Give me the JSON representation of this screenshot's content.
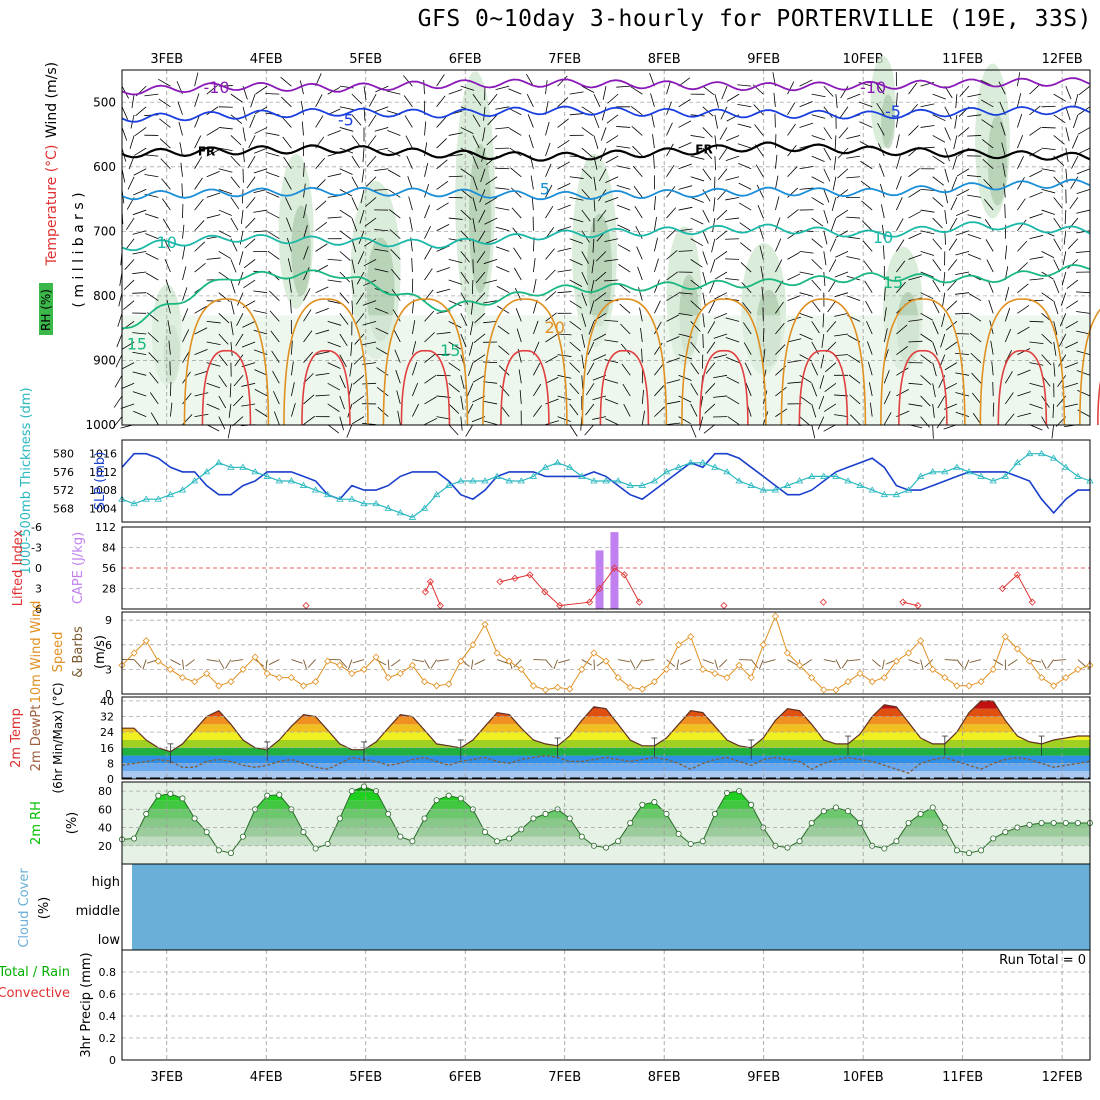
{
  "title": "GFS 0~10day 3-hourly for PORTERVILLE (19E, 33S)",
  "date_labels": [
    "3FEB",
    "4FEB",
    "5FEB",
    "6FEB",
    "7FEB",
    "8FEB",
    "9FEB",
    "10FEB",
    "11FEB",
    "12FEB"
  ],
  "run_total_label": "Run Total = 0",
  "colors": {
    "wind_barb": "#000000",
    "temp_minus10": "#8a1ab8",
    "temp_minus5": "#1a3fe0",
    "temp_FR": "#000000",
    "temp_5": "#1a8fd8",
    "temp_10": "#1ab8a8",
    "temp_15": "#1ab880",
    "temp_20": "#e09020",
    "temp_25": "#e04040",
    "rh_shade": "#cde6cd",
    "slp": "#1a3fcc",
    "thickness": "#2ab8c0",
    "cape": "#c080f0",
    "lifted_index": "#e03030",
    "wind_speed": "#e09020",
    "wind_barbs_10m": "#7a5a30",
    "rh2m": "#00c000",
    "cloud": "#6aafd8"
  },
  "chart_data": [
    {
      "type": "heatmap",
      "panel": "upper-air",
      "ylabel_parts": [
        "Wind (m/s)",
        "Temperature (°C)",
        "RH (%)",
        "( m i l l i b a r s )"
      ],
      "y_ticks": [
        "500",
        "600",
        "700",
        "800",
        "900",
        "1000"
      ],
      "ylim": [
        1000,
        450
      ],
      "contour_labels": [
        {
          "text": "-10",
          "level": -10
        },
        {
          "text": "-10",
          "level": -10
        },
        {
          "text": "-5",
          "level": -5
        },
        {
          "text": "-5",
          "level": -5
        },
        {
          "text": "FR",
          "level": 0
        },
        {
          "text": "FR",
          "level": 0
        },
        {
          "text": "5",
          "level": 5
        },
        {
          "text": "10",
          "level": 10
        },
        {
          "text": "10",
          "level": 10
        },
        {
          "text": "15",
          "level": 15
        },
        {
          "text": "15",
          "level": 15
        },
        {
          "text": "15",
          "level": 15
        },
        {
          "text": "20",
          "level": 20
        }
      ],
      "temperature_isotherms": [
        {
          "level": -10,
          "pressure": [
            483,
            475,
            478,
            472,
            470,
            473,
            476,
            474,
            470,
            468
          ]
        },
        {
          "level": -5,
          "pressure": [
            525,
            520,
            515,
            518,
            512,
            516,
            518,
            520,
            514,
            512
          ]
        },
        {
          "level": 0,
          "pressure": [
            580,
            575,
            572,
            580,
            585,
            578,
            568,
            575,
            580,
            585
          ]
        },
        {
          "level": 5,
          "pressure": [
            645,
            640,
            638,
            640,
            645,
            642,
            638,
            640,
            630,
            625
          ]
        },
        {
          "level": 10,
          "pressure": [
            725,
            710,
            715,
            720,
            705,
            700,
            695,
            705,
            690,
            700
          ]
        },
        {
          "level": 15,
          "pressure": [
            850,
            770,
            765,
            820,
            790,
            785,
            780,
            770,
            775,
            755
          ]
        }
      ]
    },
    {
      "type": "line",
      "panel": "slp-thickness",
      "ylabel": "SLP (mb)",
      "ylabel2": "1000-500mb Thickness (dm)",
      "y_ticks": [
        "1016",
        "1012",
        "1008",
        "1004"
      ],
      "y2_ticks": [
        "580",
        "576",
        "572",
        "568"
      ],
      "ylim": [
        1001,
        1019
      ],
      "y2lim": [
        565,
        583
      ],
      "series": [
        {
          "name": "SLP",
          "values": [
            1013,
            1016,
            1016,
            1015,
            1013,
            1012,
            1012,
            1009,
            1007,
            1007,
            1009,
            1010,
            1012,
            1012,
            1012,
            1011,
            1010,
            1007,
            1006,
            1009,
            1008,
            1008,
            1009,
            1011,
            1012,
            1012,
            1012,
            1010,
            1007,
            1006,
            1008,
            1011,
            1012,
            1012,
            1012,
            1011,
            1011,
            1011,
            1011,
            1012,
            1011,
            1009,
            1007,
            1006,
            1008,
            1010,
            1012,
            1014,
            1013,
            1016,
            1016,
            1015,
            1013,
            1011,
            1009,
            1007,
            1007,
            1008,
            1010,
            1012,
            1013,
            1014,
            1015,
            1013,
            1009,
            1008,
            1008,
            1009,
            1010,
            1011,
            1012,
            1012,
            1012,
            1012,
            1011,
            1010,
            1006,
            1003,
            1006,
            1008,
            1008
          ]
        },
        {
          "name": "Thickness",
          "values": [
            570,
            569,
            570,
            570,
            571,
            572,
            574,
            576,
            578,
            577,
            577,
            576,
            575,
            574,
            574,
            573,
            572,
            571,
            570,
            570,
            569,
            569,
            568,
            567,
            566,
            568,
            571,
            573,
            574,
            574,
            574,
            575,
            574,
            574,
            575,
            577,
            578,
            577,
            575,
            574,
            574,
            574,
            573,
            573,
            574,
            576,
            577,
            578,
            578,
            577,
            576,
            574,
            573,
            572,
            572,
            573,
            574,
            575,
            575,
            575,
            574,
            573,
            572,
            571,
            571,
            572,
            575,
            576,
            576,
            577,
            576,
            575,
            574,
            575,
            578,
            580,
            580,
            579,
            577,
            575,
            574
          ]
        }
      ]
    },
    {
      "type": "bar",
      "panel": "cape-li",
      "ylabel": "CAPE (J/kg)",
      "ylabel2": "Lifted Index",
      "y_ticks": [
        "112",
        "84",
        "56",
        "28"
      ],
      "y2_ticks": [
        "-6",
        "-3",
        "0",
        "3",
        "6"
      ],
      "ylim": [
        0,
        112
      ],
      "y2lim": [
        6,
        -6
      ],
      "cape_bars": [
        {
          "day": 7.35,
          "value": 80
        },
        {
          "day": 7.5,
          "value": 105
        }
      ],
      "lifted_index": [
        {
          "day": 4.4,
          "value": 5.5
        },
        {
          "day": 5.6,
          "value": 3.5
        },
        {
          "day": 5.65,
          "value": 2
        },
        {
          "day": 5.75,
          "value": 5.5
        },
        {
          "day": 6.35,
          "value": 2
        },
        {
          "day": 6.5,
          "value": 1.5
        },
        {
          "day": 6.65,
          "value": 1
        },
        {
          "day": 6.8,
          "value": 3.5
        },
        {
          "day": 6.95,
          "value": 5.5
        },
        {
          "day": 7.25,
          "value": 5
        },
        {
          "day": 7.35,
          "value": 3
        },
        {
          "day": 7.5,
          "value": 0
        },
        {
          "day": 7.6,
          "value": 1
        },
        {
          "day": 7.75,
          "value": 5
        },
        {
          "day": 8.6,
          "value": 5.5
        },
        {
          "day": 9.6,
          "value": 5
        },
        {
          "day": 10.4,
          "value": 5
        },
        {
          "day": 10.55,
          "value": 5.5
        },
        {
          "day": 11.4,
          "value": 3
        },
        {
          "day": 11.55,
          "value": 1
        },
        {
          "day": 11.7,
          "value": 5
        }
      ]
    },
    {
      "type": "line",
      "panel": "wind10m",
      "ylabel": "10m Wind Speed & Barbs (m/s)",
      "y_ticks": [
        "9",
        "6",
        "3",
        "0"
      ],
      "ylim": [
        0,
        10
      ],
      "series": [
        {
          "name": "Wind Speed",
          "values": [
            3.5,
            5,
            6.5,
            4,
            3,
            2,
            1.5,
            2.5,
            1,
            1.5,
            3,
            4.5,
            2.5,
            2,
            2,
            1,
            1.5,
            4,
            3.5,
            2.5,
            3,
            4.5,
            2,
            2.5,
            3.5,
            1.5,
            1,
            1.2,
            4,
            6,
            8.5,
            5,
            4,
            3,
            1,
            0.5,
            0.8,
            0.6,
            3,
            5,
            4,
            2,
            0.8,
            0.6,
            1.5,
            3,
            6,
            7,
            3,
            2.5,
            2,
            3.5,
            2,
            6,
            9.5,
            5,
            3.5,
            2,
            0.5,
            0.5,
            1.5,
            2.5,
            1.5,
            2,
            4,
            5,
            6.5,
            3,
            2,
            1,
            1,
            1.5,
            3,
            7,
            5.5,
            4,
            2,
            1,
            2,
            3,
            3.5
          ]
        }
      ]
    },
    {
      "type": "area",
      "panel": "temp2m",
      "ylabel": "2m Temp",
      "ylabel2": "2m DewPt",
      "ylabel3": "(6hr Min/Max) (°C)",
      "y_ticks": [
        "40",
        "32",
        "24",
        "16",
        "8",
        "0"
      ],
      "ylim": [
        0,
        42
      ],
      "series": [
        {
          "name": "2m Temp",
          "values": [
            26,
            26,
            20,
            16,
            14,
            18,
            25,
            32,
            35,
            28,
            20,
            16,
            15,
            20,
            27,
            33,
            32,
            25,
            18,
            15,
            15,
            19,
            26,
            33,
            32,
            25,
            18,
            17,
            16,
            20,
            27,
            34,
            33,
            26,
            20,
            18,
            17,
            22,
            30,
            37,
            36,
            28,
            20,
            17,
            17,
            21,
            28,
            35,
            34,
            27,
            20,
            17,
            16,
            21,
            30,
            36,
            35,
            28,
            20,
            18,
            18,
            23,
            32,
            38,
            37,
            29,
            21,
            18,
            18,
            24,
            34,
            40,
            40,
            30,
            22,
            19,
            18,
            20,
            21,
            22,
            22
          ]
        },
        {
          "name": "2m DewPt",
          "values": [
            7,
            8,
            9,
            10,
            9,
            6,
            6,
            9,
            10,
            9,
            7,
            6,
            7,
            9,
            10,
            8,
            6,
            5,
            8,
            11,
            10,
            9,
            7,
            8,
            10,
            11,
            9,
            7,
            9,
            10,
            11,
            9,
            8,
            10,
            11,
            12,
            11,
            9,
            9,
            10,
            11,
            10,
            9,
            10,
            11,
            10,
            8,
            5,
            8,
            10,
            11,
            9,
            7,
            10,
            11,
            10,
            9,
            5,
            8,
            10,
            11,
            10,
            9,
            7,
            5,
            3,
            8,
            10,
            11,
            9,
            7,
            5,
            8,
            10,
            11,
            10,
            8,
            6,
            7,
            8,
            9
          ]
        }
      ]
    },
    {
      "type": "area",
      "panel": "rh2m",
      "ylabel": "2m RH",
      "ylabel2": "(%)",
      "y_ticks": [
        "80",
        "60",
        "40",
        "20"
      ],
      "ylim": [
        0,
        90
      ],
      "series": [
        {
          "name": "2m RH",
          "values": [
            27,
            28,
            55,
            75,
            77,
            72,
            50,
            35,
            15,
            12,
            30,
            60,
            75,
            76,
            60,
            35,
            17,
            22,
            50,
            80,
            85,
            80,
            55,
            30,
            25,
            50,
            70,
            75,
            72,
            60,
            35,
            25,
            28,
            38,
            50,
            55,
            60,
            50,
            30,
            20,
            18,
            25,
            45,
            65,
            68,
            55,
            33,
            22,
            25,
            55,
            78,
            80,
            65,
            40,
            20,
            18,
            25,
            45,
            58,
            62,
            58,
            45,
            20,
            17,
            25,
            45,
            55,
            62,
            40,
            15,
            12,
            15,
            28,
            35,
            40,
            43,
            45,
            45,
            45,
            45,
            45
          ]
        }
      ]
    },
    {
      "type": "area",
      "panel": "cloud",
      "ylabel": "Cloud Cover",
      "ylabel2": "(%)",
      "levels": [
        "high",
        "middle",
        "low"
      ],
      "cover_fraction": 1.0
    },
    {
      "type": "bar",
      "panel": "precip",
      "ylabel": "3hr Precip (mm)",
      "legend": [
        "Total / Rain",
        "Convective"
      ],
      "y_ticks": [
        "0.8",
        "0.6",
        "0.4",
        "0.2",
        "0"
      ],
      "ylim": [
        0,
        1
      ],
      "values": []
    }
  ]
}
